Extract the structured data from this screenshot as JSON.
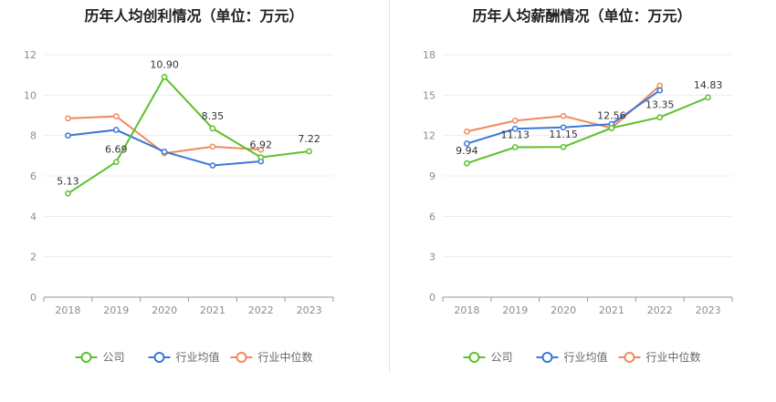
{
  "colors": {
    "company": "#5ac12d",
    "industry_avg": "#3a78d9",
    "industry_median": "#ef8a5b",
    "grid": "#e8ecf2",
    "axis": "#999999"
  },
  "legend": {
    "company": "公司",
    "industry_avg": "行业均值",
    "industry_median": "行业中位数"
  },
  "chart_data": [
    {
      "type": "line",
      "title": "历年人均创利情况（单位：万元）",
      "categories": [
        "2018",
        "2019",
        "2020",
        "2021",
        "2022",
        "2023"
      ],
      "ylim": [
        0,
        12
      ],
      "yticks": [
        0,
        2,
        4,
        6,
        8,
        10,
        12
      ],
      "grid": true,
      "legend_position": "bottom",
      "series": [
        {
          "key": "company",
          "name": "公司",
          "values": [
            5.13,
            6.69,
            10.9,
            8.35,
            6.92,
            7.22
          ],
          "labels": [
            "5.13",
            "6.69",
            "10.90",
            "8.35",
            "6.92",
            "7.22"
          ]
        },
        {
          "key": "industry_avg",
          "name": "行业均值",
          "values": [
            8.0,
            8.28,
            7.2,
            6.52,
            6.72,
            null
          ]
        },
        {
          "key": "industry_median",
          "name": "行业中位数",
          "values": [
            8.85,
            8.95,
            7.12,
            7.45,
            7.3,
            null
          ]
        }
      ]
    },
    {
      "type": "line",
      "title": "历年人均薪酬情况（单位：万元）",
      "categories": [
        "2018",
        "2019",
        "2020",
        "2021",
        "2022",
        "2023"
      ],
      "ylim": [
        0,
        18
      ],
      "yticks": [
        0,
        3,
        6,
        9,
        12,
        15,
        18
      ],
      "grid": true,
      "legend_position": "bottom",
      "series": [
        {
          "key": "company",
          "name": "公司",
          "values": [
            9.94,
            11.13,
            11.15,
            12.56,
            13.35,
            14.83
          ],
          "labels": [
            "9.94",
            "11.13",
            "11.15",
            "12.56",
            "13.35",
            "14.83"
          ]
        },
        {
          "key": "industry_avg",
          "name": "行业均值",
          "values": [
            11.4,
            12.5,
            12.6,
            12.85,
            15.35,
            null
          ]
        },
        {
          "key": "industry_median",
          "name": "行业中位数",
          "values": [
            12.3,
            13.1,
            13.45,
            12.55,
            15.7,
            null
          ]
        }
      ]
    }
  ]
}
